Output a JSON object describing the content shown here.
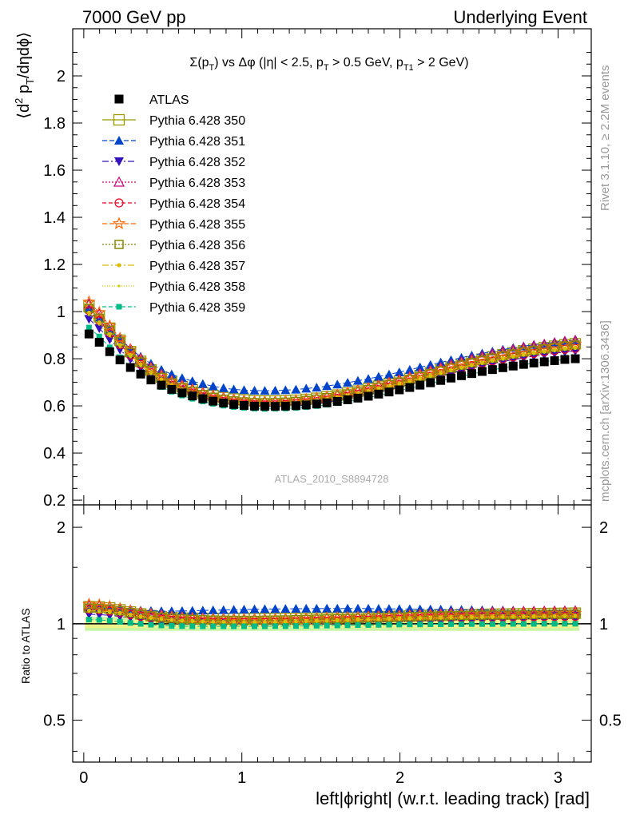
{
  "header": {
    "left": "7000 GeV pp",
    "right": "Underlying Event"
  },
  "side_labels": {
    "rivet": "Rivet 3.1.10, ≥ 2.2M events",
    "mcplots": "mcplots.cern.ch [arXiv:1306.3436]"
  },
  "analysis_tag": "ATLAS_2010_S8894728",
  "chart_data": {
    "type": "scatter",
    "title": "Σ(pT) vs Δφ (|η| < 2.5, pT > 0.5 GeV, pT1 > 2 GeV)",
    "title_parts": {
      "sigma": "Σ(p",
      "sub_t1": "T",
      "vs": ") vs Δφ (|η| < 2.5, p",
      "sub_t2": "T",
      "mid": " > 0.5 GeV, p",
      "sub_t3": "T1",
      "end": " > 2 GeV)"
    },
    "xlabel": "left|ϕright| (w.r.t. leading track) [rad]",
    "ylabel": "⟨d² pT/dηdϕ⟩",
    "ylabel_parts": {
      "a": "⟨d",
      "sup": "2",
      "b": " p",
      "sub": "T",
      "c": "/dηdϕ⟩"
    },
    "ratio_ylabel": "Ratio to ATLAS",
    "xlim": [
      -0.07,
      3.21
    ],
    "ylim": [
      0.18,
      2.2
    ],
    "ratio_ylim": [
      0.37,
      2.35
    ],
    "ratio_log": true,
    "grid": false,
    "legend_position": "top-left",
    "x_ticks": [
      "0",
      "1",
      "2",
      "3"
    ],
    "y_ticks": [
      "0.2",
      "0.4",
      "0.6",
      "0.8",
      "1",
      "1.2",
      "1.4",
      "1.6",
      "1.8",
      "2"
    ],
    "ratio_ticks": [
      "0.5",
      "1",
      "2"
    ],
    "ratio_band": {
      "inner": [
        0.97,
        1.03
      ],
      "outer": [
        0.95,
        1.05
      ],
      "inner_color": "#f2f28a",
      "outer_color": "#c9f5a3"
    },
    "reference": {
      "name": "ATLAS",
      "color": "#000000",
      "marker": "square-filled",
      "x": [
        0.033,
        0.098,
        0.164,
        0.229,
        0.295,
        0.36,
        0.425,
        0.491,
        0.556,
        0.622,
        0.687,
        0.753,
        0.818,
        0.884,
        0.949,
        1.014,
        1.08,
        1.145,
        1.211,
        1.276,
        1.342,
        1.407,
        1.473,
        1.538,
        1.604,
        1.669,
        1.734,
        1.8,
        1.865,
        1.931,
        1.996,
        2.062,
        2.127,
        2.193,
        2.258,
        2.323,
        2.389,
        2.454,
        2.52,
        2.585,
        2.651,
        2.716,
        2.782,
        2.847,
        2.913,
        2.978,
        3.043,
        3.109
      ],
      "y": [
        0.905,
        0.87,
        0.83,
        0.795,
        0.763,
        0.735,
        0.71,
        0.688,
        0.67,
        0.655,
        0.642,
        0.63,
        0.62,
        0.612,
        0.606,
        0.602,
        0.599,
        0.598,
        0.598,
        0.599,
        0.601,
        0.604,
        0.608,
        0.613,
        0.619,
        0.626,
        0.633,
        0.641,
        0.65,
        0.659,
        0.668,
        0.678,
        0.688,
        0.698,
        0.708,
        0.718,
        0.728,
        0.737,
        0.746,
        0.754,
        0.762,
        0.769,
        0.776,
        0.782,
        0.787,
        0.792,
        0.797,
        0.8
      ]
    },
    "series": [
      {
        "name": "Pythia 6.428 350",
        "color": "#999900",
        "marker": "square-open",
        "dash": "solid",
        "ratio": [
          1.13,
          1.128,
          1.12,
          1.105,
          1.088,
          1.073,
          1.06,
          1.05,
          1.045,
          1.041,
          1.04,
          1.039,
          1.038,
          1.038,
          1.038,
          1.038,
          1.038,
          1.038,
          1.038,
          1.038,
          1.038,
          1.039,
          1.04,
          1.041,
          1.043,
          1.045,
          1.047,
          1.049,
          1.051,
          1.053,
          1.055,
          1.057,
          1.059,
          1.061,
          1.063,
          1.065,
          1.067,
          1.068,
          1.07,
          1.071,
          1.072,
          1.073,
          1.074,
          1.075,
          1.076,
          1.077,
          1.078,
          1.079
        ]
      },
      {
        "name": "Pythia 6.428 351",
        "color": "#0044cc",
        "marker": "triangle-up-filled",
        "dash": "6,3",
        "ratio": [
          1.12,
          1.118,
          1.115,
          1.11,
          1.105,
          1.1,
          1.097,
          1.095,
          1.095,
          1.096,
          1.098,
          1.1,
          1.102,
          1.104,
          1.106,
          1.108,
          1.11,
          1.111,
          1.112,
          1.113,
          1.114,
          1.115,
          1.115,
          1.116,
          1.116,
          1.116,
          1.116,
          1.115,
          1.114,
          1.113,
          1.112,
          1.111,
          1.11,
          1.109,
          1.108,
          1.106,
          1.105,
          1.104,
          1.103,
          1.102,
          1.101,
          1.1,
          1.099,
          1.099,
          1.098,
          1.098,
          1.098,
          1.098
        ]
      },
      {
        "name": "Pythia 6.428 352",
        "color": "#3311bb",
        "marker": "triangle-down-filled",
        "dash": "8,3,2,3",
        "ratio": [
          1.07,
          1.068,
          1.062,
          1.054,
          1.046,
          1.038,
          1.031,
          1.025,
          1.02,
          1.016,
          1.012,
          1.009,
          1.006,
          1.004,
          1.002,
          1.0,
          0.999,
          0.998,
          0.998,
          0.998,
          0.999,
          1.0,
          1.002,
          1.004,
          1.006,
          1.008,
          1.01,
          1.012,
          1.014,
          1.016,
          1.018,
          1.02,
          1.022,
          1.024,
          1.026,
          1.028,
          1.03,
          1.031,
          1.032,
          1.033,
          1.034,
          1.035,
          1.036,
          1.037,
          1.038,
          1.039,
          1.04,
          1.041
        ]
      },
      {
        "name": "Pythia 6.428 353",
        "color": "#cc0077",
        "marker": "triangle-up-open",
        "dash": "2,2",
        "ratio": [
          1.14,
          1.138,
          1.13,
          1.118,
          1.104,
          1.09,
          1.077,
          1.066,
          1.058,
          1.052,
          1.047,
          1.043,
          1.04,
          1.038,
          1.037,
          1.036,
          1.036,
          1.036,
          1.037,
          1.038,
          1.039,
          1.041,
          1.043,
          1.045,
          1.048,
          1.051,
          1.054,
          1.057,
          1.06,
          1.063,
          1.066,
          1.069,
          1.072,
          1.075,
          1.078,
          1.081,
          1.083,
          1.085,
          1.087,
          1.089,
          1.09,
          1.091,
          1.092,
          1.093,
          1.094,
          1.095,
          1.096,
          1.097
        ]
      },
      {
        "name": "Pythia 6.428 354",
        "color": "#ee0022",
        "marker": "circle-open",
        "dash": "5,3",
        "ratio": [
          1.11,
          1.105,
          1.095,
          1.082,
          1.068,
          1.055,
          1.043,
          1.033,
          1.026,
          1.02,
          1.016,
          1.013,
          1.011,
          1.01,
          1.009,
          1.009,
          1.009,
          1.01,
          1.011,
          1.012,
          1.013,
          1.015,
          1.017,
          1.019,
          1.021,
          1.023,
          1.025,
          1.027,
          1.029,
          1.031,
          1.033,
          1.035,
          1.037,
          1.039,
          1.041,
          1.043,
          1.045,
          1.046,
          1.047,
          1.048,
          1.049,
          1.05,
          1.051,
          1.052,
          1.053,
          1.053,
          1.054,
          1.054
        ]
      },
      {
        "name": "Pythia 6.428 355",
        "color": "#ff6600",
        "marker": "star-open",
        "dash": "6,3",
        "ratio": [
          1.15,
          1.145,
          1.132,
          1.115,
          1.097,
          1.08,
          1.066,
          1.055,
          1.047,
          1.041,
          1.037,
          1.034,
          1.032,
          1.031,
          1.03,
          1.03,
          1.03,
          1.031,
          1.032,
          1.033,
          1.035,
          1.037,
          1.039,
          1.041,
          1.043,
          1.045,
          1.047,
          1.049,
          1.051,
          1.053,
          1.055,
          1.057,
          1.059,
          1.061,
          1.063,
          1.065,
          1.067,
          1.068,
          1.069,
          1.07,
          1.071,
          1.072,
          1.073,
          1.074,
          1.075,
          1.076,
          1.077,
          1.078
        ]
      },
      {
        "name": "Pythia 6.428 356",
        "color": "#888800",
        "marker": "square-open-small",
        "dash": "2,2",
        "ratio": [
          1.12,
          1.117,
          1.11,
          1.098,
          1.084,
          1.07,
          1.058,
          1.048,
          1.041,
          1.036,
          1.032,
          1.029,
          1.027,
          1.026,
          1.025,
          1.025,
          1.025,
          1.026,
          1.027,
          1.028,
          1.03,
          1.032,
          1.034,
          1.036,
          1.038,
          1.04,
          1.042,
          1.044,
          1.046,
          1.048,
          1.05,
          1.052,
          1.054,
          1.056,
          1.058,
          1.06,
          1.062,
          1.063,
          1.064,
          1.065,
          1.066,
          1.067,
          1.068,
          1.069,
          1.07,
          1.071,
          1.072,
          1.073
        ]
      },
      {
        "name": "Pythia 6.428 357",
        "color": "#ddbb00",
        "marker": "dot",
        "dash": "8,3,2,3",
        "ratio": [
          1.1,
          1.097,
          1.09,
          1.08,
          1.068,
          1.056,
          1.045,
          1.036,
          1.029,
          1.024,
          1.02,
          1.017,
          1.015,
          1.014,
          1.013,
          1.013,
          1.013,
          1.014,
          1.015,
          1.016,
          1.018,
          1.02,
          1.022,
          1.024,
          1.026,
          1.028,
          1.03,
          1.032,
          1.034,
          1.036,
          1.038,
          1.04,
          1.042,
          1.044,
          1.046,
          1.048,
          1.049,
          1.05,
          1.051,
          1.052,
          1.053,
          1.054,
          1.055,
          1.056,
          1.057,
          1.058,
          1.059,
          1.06
        ]
      },
      {
        "name": "Pythia 6.428 358",
        "color": "#cccc00",
        "marker": "dot-small",
        "dash": "1,2",
        "ratio": [
          1.09,
          1.087,
          1.08,
          1.07,
          1.058,
          1.046,
          1.036,
          1.028,
          1.022,
          1.017,
          1.014,
          1.011,
          1.009,
          1.008,
          1.007,
          1.007,
          1.007,
          1.008,
          1.009,
          1.01,
          1.011,
          1.013,
          1.015,
          1.017,
          1.019,
          1.021,
          1.023,
          1.025,
          1.027,
          1.029,
          1.031,
          1.033,
          1.035,
          1.037,
          1.039,
          1.041,
          1.042,
          1.043,
          1.044,
          1.045,
          1.046,
          1.047,
          1.048,
          1.049,
          1.05,
          1.051,
          1.052,
          1.053
        ]
      },
      {
        "name": "Pythia 6.428 359",
        "color": "#00bb88",
        "marker": "square-filled-small",
        "dash": "5,3",
        "ratio": [
          1.03,
          1.028,
          1.022,
          1.014,
          1.006,
          0.999,
          0.993,
          0.988,
          0.985,
          0.983,
          0.982,
          0.982,
          0.982,
          0.982,
          0.982,
          0.982,
          0.982,
          0.982,
          0.983,
          0.983,
          0.984,
          0.985,
          0.986,
          0.987,
          0.988,
          0.989,
          0.99,
          0.991,
          0.992,
          0.993,
          0.994,
          0.995,
          0.995,
          0.996,
          0.996,
          0.997,
          0.997,
          0.998,
          0.998,
          0.998,
          0.999,
          0.999,
          0.999,
          0.999,
          1.0,
          1.0,
          1.0,
          1.0
        ]
      }
    ]
  }
}
